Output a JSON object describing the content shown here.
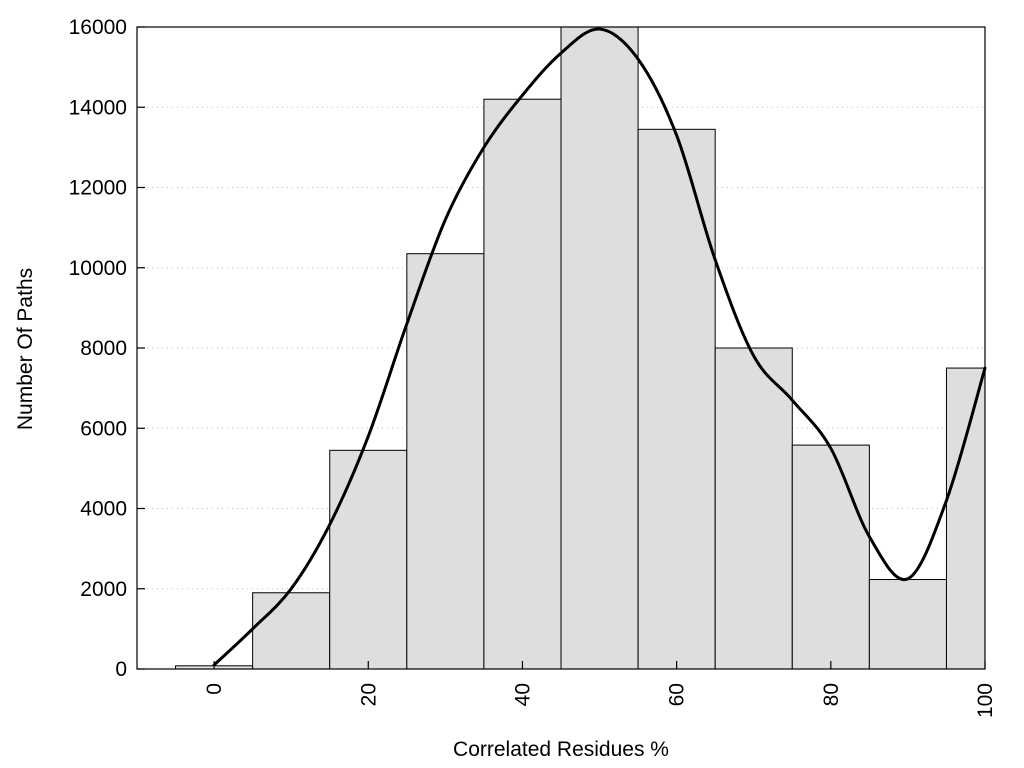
{
  "chart_data": {
    "type": "bar",
    "title": "",
    "xlabel": "Correlated Residues %",
    "ylabel": "Number Of Paths",
    "x_ticks": [
      0,
      20,
      40,
      60,
      80,
      100
    ],
    "y_ticks": [
      0,
      2000,
      4000,
      6000,
      8000,
      10000,
      12000,
      14000,
      16000
    ],
    "xlim": [
      -10,
      100
    ],
    "ylim": [
      0,
      16000
    ],
    "grid": "horizontal dotted",
    "bin_width": 10,
    "categories": [
      0,
      10,
      20,
      30,
      40,
      50,
      60,
      70,
      80,
      90,
      100
    ],
    "values": [
      80,
      1900,
      5450,
      10350,
      14200,
      16000,
      13450,
      8000,
      5580,
      2230,
      7500
    ],
    "colors": {
      "bar_fill": "#dedede",
      "bar_stroke": "#000000",
      "curve": "#000000"
    },
    "smooth_curve": {
      "x": [
        0,
        5,
        10,
        15,
        20,
        25,
        30,
        35,
        40,
        45,
        50,
        55,
        60,
        65,
        70,
        75,
        80,
        85,
        90,
        95,
        100
      ],
      "y": [
        100,
        1000,
        2000,
        3600,
        5800,
        8600,
        11200,
        13000,
        14300,
        15350,
        15950,
        15200,
        13300,
        10200,
        7800,
        6700,
        5500,
        3300,
        2250,
        4200,
        7500
      ]
    }
  }
}
